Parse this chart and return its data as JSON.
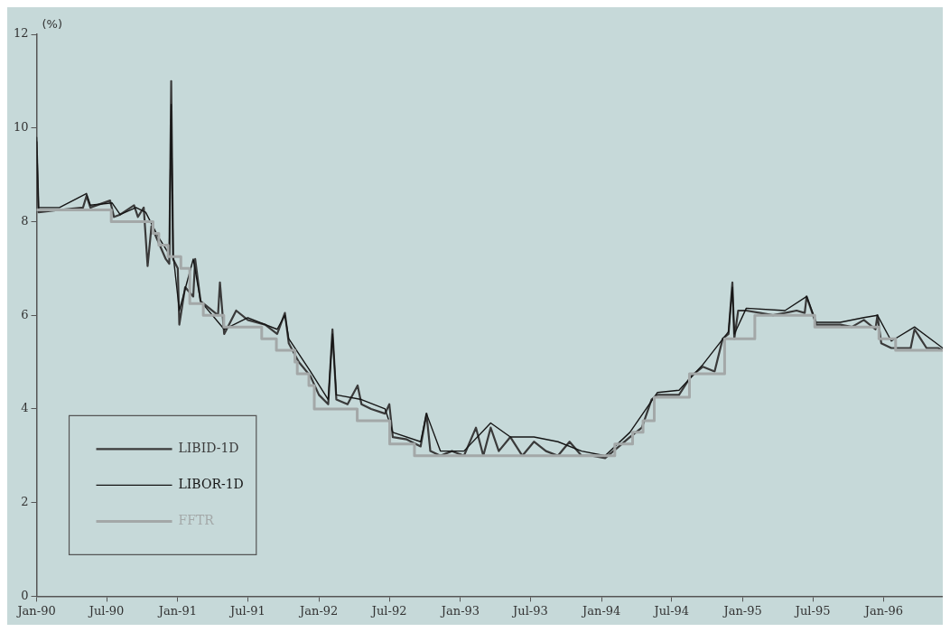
{
  "chart_data": {
    "type": "line",
    "ylabel": "(%)",
    "ylim": [
      0,
      12
    ],
    "yticks": [
      0,
      2,
      4,
      6,
      8,
      10,
      12
    ],
    "xlim": [
      "1990-01-01",
      "1996-06-01"
    ],
    "xticks": [
      {
        "value": "1990-01-01",
        "label": "Jan-90"
      },
      {
        "value": "1990-07-01",
        "label": "Jul-90"
      },
      {
        "value": "1991-01-01",
        "label": "Jan-91"
      },
      {
        "value": "1991-07-01",
        "label": "Jul-91"
      },
      {
        "value": "1992-01-01",
        "label": "Jan-92"
      },
      {
        "value": "1992-07-01",
        "label": "Jul-92"
      },
      {
        "value": "1993-01-01",
        "label": "Jan-93"
      },
      {
        "value": "1993-07-01",
        "label": "Jul-93"
      },
      {
        "value": "1994-01-01",
        "label": "Jan-94"
      },
      {
        "value": "1994-07-01",
        "label": "Jul-94"
      },
      {
        "value": "1995-01-01",
        "label": "Jan-95"
      },
      {
        "value": "1995-07-01",
        "label": "Jul-95"
      },
      {
        "value": "1996-01-01",
        "label": "Jan-96"
      }
    ],
    "grid": false,
    "legend": "bottom left",
    "marker": "none",
    "series": [
      {
        "name": "LIBID-1D",
        "color": "#3a3a3a",
        "x": [
          "1990-01-01",
          "1990-01-06",
          "1990-03-01",
          "1990-05-01",
          "1990-05-10",
          "1990-05-20",
          "1990-07-10",
          "1990-07-20",
          "1990-08-05",
          "1990-09-10",
          "1990-09-20",
          "1990-10-05",
          "1990-10-15",
          "1990-10-25",
          "1990-11-10",
          "1990-12-01",
          "1990-12-10",
          "1990-12-15",
          "1990-12-20",
          "1991-01-01",
          "1991-01-05",
          "1991-01-20",
          "1991-02-10",
          "1991-02-15",
          "1991-03-01",
          "1991-04-15",
          "1991-04-20",
          "1991-05-01",
          "1991-06-01",
          "1991-07-01",
          "1991-08-15",
          "1991-09-15",
          "1991-10-05",
          "1991-10-15",
          "1991-11-10",
          "1991-12-10",
          "1992-01-01",
          "1992-01-25",
          "1992-02-05",
          "1992-02-15",
          "1992-03-15",
          "1992-04-10",
          "1992-04-20",
          "1992-05-15",
          "1992-06-20",
          "1992-07-01",
          "1992-07-10",
          "1992-08-15",
          "1992-09-20",
          "1992-10-05",
          "1992-10-15",
          "1992-11-10",
          "1992-12-10",
          "1993-01-10",
          "1993-02-10",
          "1993-03-01",
          "1993-03-20",
          "1993-04-10",
          "1993-05-10",
          "1993-06-10",
          "1993-07-10",
          "1993-08-10",
          "1993-09-10",
          "1993-10-10",
          "1993-11-10",
          "1993-12-10",
          "1994-01-10",
          "1994-02-15",
          "1994-03-15",
          "1994-04-15",
          "1994-05-10",
          "1994-05-25",
          "1994-06-20",
          "1994-07-20",
          "1994-08-20",
          "1994-09-20",
          "1994-10-20",
          "1994-11-10",
          "1994-11-25",
          "1994-12-05",
          "1994-12-10",
          "1994-12-20",
          "1995-01-10",
          "1995-02-15",
          "1995-03-20",
          "1995-04-20",
          "1995-05-20",
          "1995-06-10",
          "1995-06-15",
          "1995-07-10",
          "1995-08-10",
          "1995-09-10",
          "1995-10-10",
          "1995-11-10",
          "1995-12-10",
          "1995-12-15",
          "1995-12-25",
          "1996-01-20",
          "1996-02-20",
          "1996-03-10",
          "1996-03-20",
          "1996-04-20",
          "1996-05-20",
          "1996-06-01"
        ],
        "values": [
          9.7,
          8.2,
          8.25,
          8.3,
          8.55,
          8.3,
          8.45,
          8.1,
          8.15,
          8.35,
          8.1,
          8.3,
          7.05,
          7.9,
          7.6,
          7.2,
          7.1,
          11.0,
          7.2,
          7.0,
          5.8,
          6.6,
          6.4,
          7.2,
          6.3,
          6.0,
          6.7,
          5.6,
          6.1,
          5.9,
          5.8,
          5.6,
          6.05,
          5.4,
          5.0,
          4.7,
          4.3,
          4.1,
          5.7,
          4.2,
          4.1,
          4.5,
          4.1,
          4.0,
          3.9,
          4.1,
          3.4,
          3.35,
          3.2,
          3.9,
          3.1,
          3.0,
          3.1,
          3.0,
          3.6,
          3.0,
          3.6,
          3.1,
          3.4,
          3.0,
          3.3,
          3.1,
          3.0,
          3.3,
          3.0,
          3.0,
          2.95,
          3.2,
          3.4,
          3.6,
          4.2,
          4.3,
          4.3,
          4.3,
          4.7,
          4.9,
          4.8,
          5.5,
          5.6,
          6.7,
          5.5,
          6.1,
          6.1,
          6.05,
          6.0,
          6.05,
          6.1,
          6.05,
          6.4,
          5.8,
          5.8,
          5.8,
          5.75,
          5.9,
          5.7,
          6.0,
          5.4,
          5.3,
          5.3,
          5.3,
          5.7,
          5.3,
          5.3,
          5.25
        ]
      },
      {
        "name": "LIBOR-1D",
        "color": "#151515",
        "x": [
          "1990-01-01",
          "1990-01-06",
          "1990-03-01",
          "1990-05-10",
          "1990-05-20",
          "1990-07-15",
          "1990-08-05",
          "1990-09-15",
          "1990-10-10",
          "1990-11-10",
          "1990-12-10",
          "1990-12-15",
          "1990-12-20",
          "1991-01-05",
          "1991-02-10",
          "1991-03-01",
          "1991-05-01",
          "1991-07-01",
          "1991-09-15",
          "1991-10-05",
          "1991-10-15",
          "1991-12-10",
          "1992-01-25",
          "1992-02-05",
          "1992-02-15",
          "1992-04-20",
          "1992-06-20",
          "1992-07-10",
          "1992-09-20",
          "1992-10-05",
          "1992-11-10",
          "1993-01-10",
          "1993-03-20",
          "1993-05-10",
          "1993-07-10",
          "1993-09-10",
          "1993-11-10",
          "1994-01-10",
          "1994-03-15",
          "1994-05-25",
          "1994-07-20",
          "1994-09-20",
          "1994-11-25",
          "1994-12-05",
          "1994-12-10",
          "1995-01-10",
          "1995-04-20",
          "1995-06-15",
          "1995-07-10",
          "1995-09-10",
          "1995-11-10",
          "1995-12-15",
          "1996-01-20",
          "1996-03-20",
          "1996-06-01"
        ],
        "values": [
          9.8,
          8.3,
          8.3,
          8.6,
          8.35,
          8.4,
          8.15,
          8.3,
          8.2,
          7.7,
          7.3,
          10.5,
          7.3,
          6.1,
          7.2,
          6.3,
          5.7,
          5.95,
          5.7,
          6.0,
          5.5,
          4.8,
          4.2,
          5.6,
          4.3,
          4.2,
          4.0,
          3.5,
          3.3,
          3.9,
          3.1,
          3.1,
          3.7,
          3.4,
          3.4,
          3.3,
          3.1,
          3.0,
          3.5,
          4.35,
          4.4,
          4.95,
          5.65,
          6.6,
          5.6,
          6.15,
          6.1,
          6.4,
          5.85,
          5.85,
          5.95,
          6.0,
          5.45,
          5.75,
          5.3
        ]
      },
      {
        "name": "FFTR",
        "color": "#a3a8a8",
        "type": "step",
        "x": [
          "1990-01-01",
          "1990-07-13",
          "1990-10-29",
          "1990-11-13",
          "1990-12-07",
          "1991-01-09",
          "1991-02-01",
          "1991-03-08",
          "1991-04-30",
          "1991-08-06",
          "1991-09-13",
          "1991-10-31",
          "1991-11-06",
          "1991-12-06",
          "1991-12-20",
          "1992-04-09",
          "1992-07-02",
          "1992-09-04",
          "1994-02-04",
          "1994-03-22",
          "1994-04-18",
          "1994-05-17",
          "1994-08-16",
          "1994-11-15",
          "1995-02-01",
          "1995-07-06",
          "1995-12-19",
          "1996-01-31",
          "1996-06-01"
        ],
        "values": [
          8.25,
          8.0,
          7.75,
          7.5,
          7.25,
          7.0,
          6.25,
          6.0,
          5.75,
          5.5,
          5.25,
          5.0,
          4.75,
          4.5,
          4.0,
          3.75,
          3.25,
          3.0,
          3.25,
          3.5,
          3.75,
          4.25,
          4.75,
          5.5,
          6.0,
          5.75,
          5.5,
          5.25,
          5.25
        ]
      }
    ]
  }
}
